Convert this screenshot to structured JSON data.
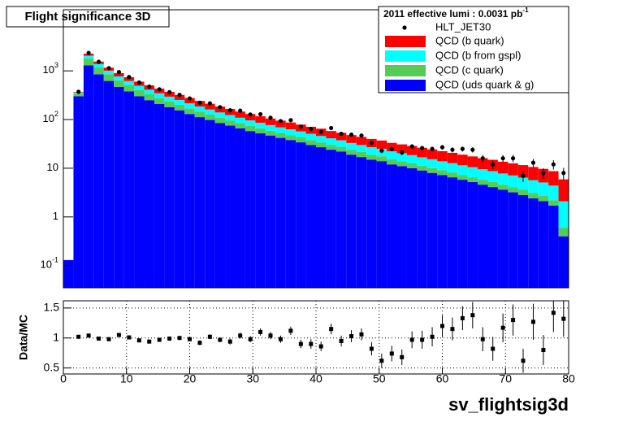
{
  "chart_data": [
    {
      "type": "stacked_histogram",
      "title": "Flight significance 3D",
      "legend_title": "2011 effective lumi : 0.0031  pb",
      "legend_title_sup": "-1",
      "log_y": true,
      "legend": "top-right",
      "bins": [
        0,
        1.6,
        3.2,
        4.8,
        6.4,
        8,
        9.6,
        11.2,
        12.8,
        14.4,
        16,
        17.6,
        19.2,
        20.8,
        22.4,
        24,
        25.6,
        27.2,
        28.8,
        30.4,
        32,
        33.6,
        35.2,
        36.8,
        38.4,
        40,
        41.6,
        43.2,
        44.8,
        46.4,
        48,
        49.6,
        51.2,
        52.8,
        54.4,
        56,
        57.6,
        59.2,
        60.8,
        62.4,
        64,
        65.6,
        67.2,
        68.8,
        70.4,
        72,
        73.6,
        75.2,
        76.8,
        78.4,
        80
      ],
      "xlim": [
        0,
        80
      ],
      "ylim": [
        0.035,
        18000
      ],
      "yticks": [
        {
          "value": 0.1,
          "label": "10^-1"
        },
        1,
        10,
        {
          "value": 100,
          "label": "10^2"
        },
        {
          "value": 1000,
          "label": "10^3"
        }
      ],
      "data": {
        "name": "HLT_JET30",
        "color": "#000000",
        "values": [
          null,
          372,
          2340,
          1535,
          1137,
          945,
          747,
          576,
          475,
          418,
          366,
          321,
          271,
          222,
          215,
          179,
          155,
          152,
          127,
          129,
          109,
          93,
          97,
          71,
          64,
          56,
          67,
          51,
          49,
          47,
          33,
          23,
          25,
          21,
          28,
          26,
          25,
          27,
          24,
          25,
          24,
          16,
          12,
          16,
          16,
          7,
          13,
          8,
          12,
          8
        ],
        "errors": [
          null,
          8,
          25,
          20,
          17,
          15,
          14,
          12,
          11,
          10,
          9,
          9,
          8,
          7,
          7,
          6,
          6,
          6,
          5,
          5,
          5,
          4.5,
          4.5,
          4,
          4,
          3.8,
          4,
          3.5,
          3.5,
          3.5,
          3,
          2.5,
          2.6,
          2.4,
          2.8,
          2.7,
          2.7,
          3,
          2.9,
          3,
          3,
          2.6,
          2.3,
          2.6,
          2.7,
          1.8,
          2.5,
          2,
          2.6,
          2.2
        ]
      },
      "series": [
        {
          "name": "QCD (b quark)",
          "color": "#ff0000",
          "values": [
            0,
            10,
            200,
            170,
            150,
            130,
            120,
            105,
            95,
            85,
            75,
            68,
            62,
            56,
            50,
            45,
            41,
            37,
            34,
            31,
            28,
            26,
            24,
            22,
            20,
            19,
            17,
            16,
            15,
            14,
            13,
            12,
            11,
            10.5,
            10,
            9.5,
            9,
            8.5,
            8,
            7.5,
            7,
            6.6,
            6.2,
            5.8,
            5.5,
            5.2,
            4.9,
            4.6,
            4.3,
            3.8
          ]
        },
        {
          "name": "QCD (b from gspl)",
          "color": "#00ffff",
          "values": [
            0,
            15,
            250,
            200,
            160,
            130,
            110,
            95,
            80,
            70,
            60,
            52,
            46,
            40,
            35,
            31,
            28,
            25,
            22,
            20,
            18,
            16,
            15,
            14,
            13,
            12,
            11,
            10,
            9,
            8.5,
            8,
            7.5,
            7,
            6.5,
            6,
            5.5,
            5.2,
            4.8,
            4.5,
            4.2,
            4,
            3.7,
            3.5,
            3.2,
            3,
            2.8,
            2.6,
            2.4,
            2.2,
            1.5
          ]
        },
        {
          "name": "QCD (c quark)",
          "color": "#55cc55",
          "values": [
            0,
            40,
            500,
            330,
            230,
            170,
            130,
            100,
            80,
            66,
            55,
            46,
            39,
            33,
            28,
            24,
            21,
            18,
            16,
            14,
            12,
            11,
            10,
            9,
            8,
            7,
            6.2,
            5.5,
            5,
            4.5,
            4,
            3.6,
            3.2,
            2.9,
            2.6,
            2.3,
            2.1,
            1.9,
            1.7,
            1.5,
            1.3,
            1.2,
            1.1,
            1,
            0.9,
            0.8,
            0.7,
            0.6,
            0.5,
            0.2
          ]
        },
        {
          "name": "QCD (uds quark & g)",
          "color": "#0000ff",
          "values": [
            0.13,
            300,
            1300,
            850,
            620,
            470,
            380,
            300,
            250,
            210,
            180,
            155,
            130,
            112,
            98,
            85,
            75,
            66,
            58,
            52,
            47,
            42,
            38,
            34,
            30,
            27,
            24,
            22,
            19,
            17,
            15,
            14,
            12,
            11,
            10,
            9,
            8,
            7.2,
            6.5,
            5.8,
            5.2,
            4.6,
            4.1,
            3.6,
            3.2,
            2.8,
            2.4,
            2.1,
            1.7,
            0.4
          ]
        }
      ]
    },
    {
      "type": "ratio",
      "ylabel": "Data/MC",
      "xlabel": "sv_flightsig3d",
      "grid": true,
      "xlim": [
        0,
        80
      ],
      "xticks": [
        0,
        10,
        20,
        30,
        40,
        50,
        60,
        70,
        80
      ],
      "ylim": [
        0.4,
        1.62
      ],
      "yticks": [
        0.5,
        1,
        1.5
      ],
      "values": [
        null,
        1.02,
        1.04,
        0.99,
        0.98,
        1.05,
        1.01,
        0.96,
        0.94,
        0.97,
        0.99,
        1.0,
        0.98,
        0.92,
        1.02,
        0.97,
        0.94,
        1.04,
        0.98,
        1.1,
        1.04,
        0.98,
        1.12,
        0.9,
        0.9,
        0.86,
        1.15,
        0.95,
        1.03,
        1.06,
        0.82,
        0.62,
        0.74,
        0.68,
        0.97,
        0.97,
        1.02,
        1.2,
        1.15,
        1.33,
        1.38,
        0.98,
        0.82,
        1.17,
        1.3,
        0.62,
        1.27,
        0.8,
        1.42,
        1.32
      ],
      "errors": [
        null,
        0.02,
        0.02,
        0.02,
        0.02,
        0.02,
        0.02,
        0.03,
        0.03,
        0.03,
        0.03,
        0.03,
        0.03,
        0.04,
        0.04,
        0.04,
        0.05,
        0.05,
        0.05,
        0.06,
        0.06,
        0.06,
        0.07,
        0.07,
        0.08,
        0.08,
        0.09,
        0.09,
        0.1,
        0.1,
        0.11,
        0.12,
        0.13,
        0.13,
        0.14,
        0.15,
        0.16,
        0.18,
        0.19,
        0.2,
        0.22,
        0.2,
        0.2,
        0.24,
        0.26,
        0.2,
        0.3,
        0.25,
        0.32,
        0.3
      ]
    }
  ]
}
